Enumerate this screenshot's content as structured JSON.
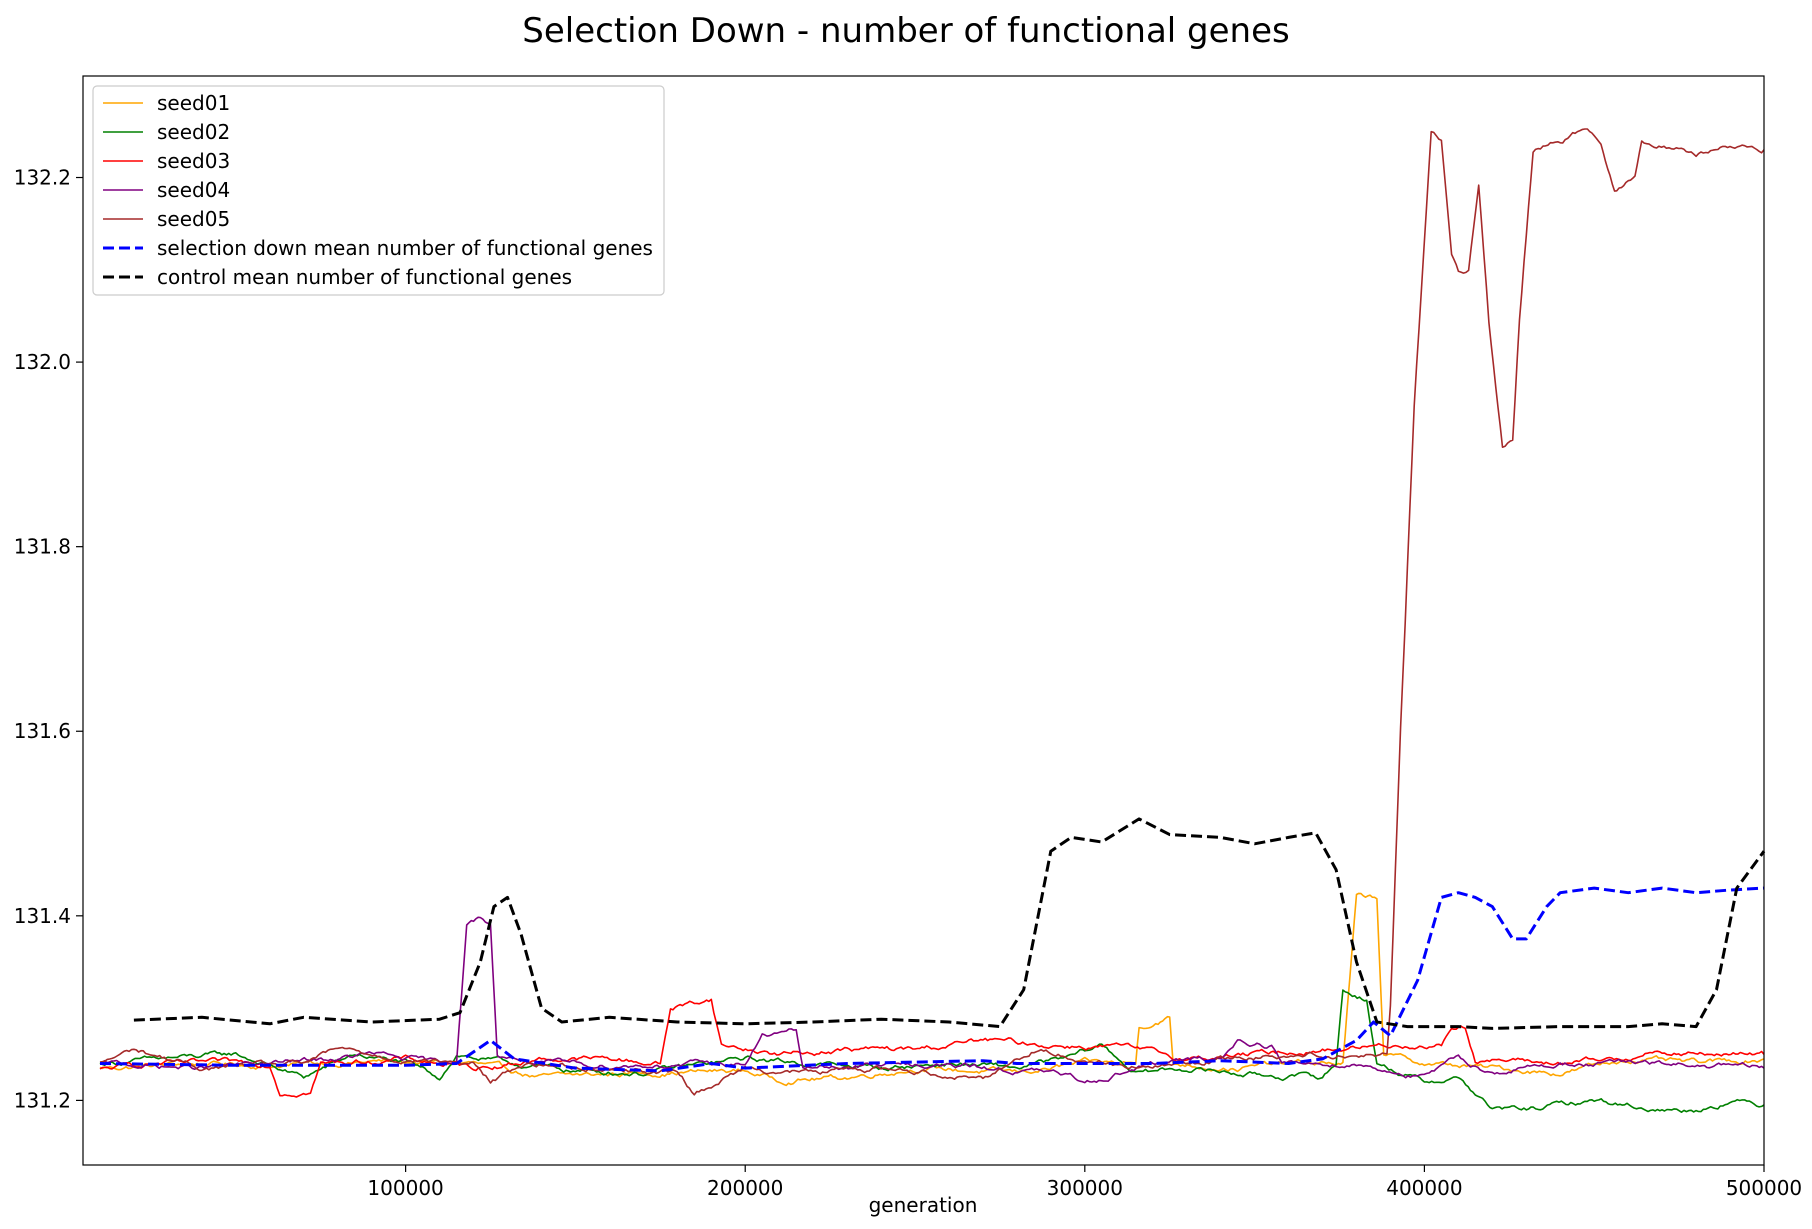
{
  "chart_data": {
    "type": "line",
    "title": "Selection Down - number of functional genes",
    "xlabel": "generation",
    "ylabel": "",
    "xlim": [
      5000,
      500000
    ],
    "ylim": [
      131.13,
      132.31
    ],
    "xticks": [
      100000,
      200000,
      300000,
      400000,
      500000
    ],
    "xtick_labels": [
      "100000",
      "200000",
      "300000",
      "400000",
      "500000"
    ],
    "yticks": [
      131.2,
      131.4,
      131.6,
      131.8,
      132.0,
      132.2
    ],
    "ytick_labels": [
      "131.2",
      "131.4",
      "131.6",
      "131.8",
      "132.0",
      "132.2"
    ],
    "grid": false,
    "legend_position": "top-left",
    "series": [
      {
        "name": "seed01",
        "color": "#ffa500",
        "style": "solid",
        "points": [
          [
            10000,
            131.235
          ],
          [
            40000,
            131.24
          ],
          [
            60000,
            131.238
          ],
          [
            90000,
            131.242
          ],
          [
            120000,
            131.24
          ],
          [
            140000,
            131.225
          ],
          [
            170000,
            131.23
          ],
          [
            200000,
            131.232
          ],
          [
            210000,
            131.222
          ],
          [
            230000,
            131.225
          ],
          [
            250000,
            131.235
          ],
          [
            280000,
            131.23
          ],
          [
            300000,
            131.24
          ],
          [
            315000,
            131.24
          ],
          [
            316000,
            131.28
          ],
          [
            325000,
            131.29
          ],
          [
            326000,
            131.24
          ],
          [
            345000,
            131.235
          ],
          [
            360000,
            131.24
          ],
          [
            376000,
            131.24
          ],
          [
            380000,
            131.42
          ],
          [
            386000,
            131.42
          ],
          [
            388000,
            131.25
          ],
          [
            400000,
            131.24
          ],
          [
            420000,
            131.235
          ],
          [
            440000,
            131.23
          ],
          [
            460000,
            131.245
          ],
          [
            480000,
            131.24
          ],
          [
            500000,
            131.245
          ]
        ]
      },
      {
        "name": "seed02",
        "color": "#008000",
        "style": "solid",
        "points": [
          [
            10000,
            131.24
          ],
          [
            30000,
            131.245
          ],
          [
            50000,
            131.25
          ],
          [
            70000,
            131.225
          ],
          [
            85000,
            131.25
          ],
          [
            100000,
            131.24
          ],
          [
            110000,
            131.225
          ],
          [
            115000,
            131.25
          ],
          [
            130000,
            131.24
          ],
          [
            150000,
            131.232
          ],
          [
            170000,
            131.23
          ],
          [
            190000,
            131.24
          ],
          [
            200000,
            131.245
          ],
          [
            220000,
            131.24
          ],
          [
            240000,
            131.235
          ],
          [
            260000,
            131.24
          ],
          [
            280000,
            131.235
          ],
          [
            295000,
            131.245
          ],
          [
            305000,
            131.26
          ],
          [
            315000,
            131.23
          ],
          [
            330000,
            131.235
          ],
          [
            350000,
            131.228
          ],
          [
            370000,
            131.225
          ],
          [
            374000,
            131.24
          ],
          [
            376000,
            131.32
          ],
          [
            383000,
            131.31
          ],
          [
            386000,
            131.24
          ],
          [
            400000,
            131.22
          ],
          [
            410000,
            131.225
          ],
          [
            420000,
            131.19
          ],
          [
            430000,
            131.19
          ],
          [
            450000,
            131.2
          ],
          [
            470000,
            131.19
          ],
          [
            480000,
            131.19
          ],
          [
            490000,
            131.2
          ],
          [
            500000,
            131.195
          ]
        ]
      },
      {
        "name": "seed03",
        "color": "#ff0000",
        "style": "solid",
        "points": [
          [
            10000,
            131.233
          ],
          [
            25000,
            131.24
          ],
          [
            60000,
            131.24
          ],
          [
            63000,
            131.21
          ],
          [
            72000,
            131.21
          ],
          [
            75000,
            131.24
          ],
          [
            100000,
            131.245
          ],
          [
            120000,
            131.235
          ],
          [
            140000,
            131.245
          ],
          [
            160000,
            131.245
          ],
          [
            175000,
            131.24
          ],
          [
            178000,
            131.3
          ],
          [
            190000,
            131.31
          ],
          [
            193000,
            131.26
          ],
          [
            210000,
            131.25
          ],
          [
            230000,
            131.255
          ],
          [
            250000,
            131.255
          ],
          [
            270000,
            131.265
          ],
          [
            290000,
            131.26
          ],
          [
            310000,
            131.258
          ],
          [
            330000,
            131.245
          ],
          [
            350000,
            131.25
          ],
          [
            370000,
            131.255
          ],
          [
            390000,
            131.26
          ],
          [
            405000,
            131.26
          ],
          [
            408000,
            131.28
          ],
          [
            412000,
            131.28
          ],
          [
            415000,
            131.245
          ],
          [
            440000,
            131.24
          ],
          [
            460000,
            131.245
          ],
          [
            465000,
            131.255
          ],
          [
            470000,
            131.25
          ],
          [
            500000,
            131.25
          ]
        ]
      },
      {
        "name": "seed04",
        "color": "#800080",
        "style": "solid",
        "points": [
          [
            10000,
            131.24
          ],
          [
            40000,
            131.235
          ],
          [
            80000,
            131.245
          ],
          [
            90000,
            131.25
          ],
          [
            110000,
            131.24
          ],
          [
            115000,
            131.245
          ],
          [
            118000,
            131.39
          ],
          [
            122000,
            131.398
          ],
          [
            125000,
            131.39
          ],
          [
            127000,
            131.25
          ],
          [
            140000,
            131.24
          ],
          [
            160000,
            131.238
          ],
          [
            200000,
            131.24
          ],
          [
            205000,
            131.27
          ],
          [
            215000,
            131.275
          ],
          [
            217000,
            131.235
          ],
          [
            250000,
            131.24
          ],
          [
            290000,
            131.23
          ],
          [
            300000,
            131.22
          ],
          [
            320000,
            131.24
          ],
          [
            340000,
            131.245
          ],
          [
            345000,
            131.265
          ],
          [
            355000,
            131.26
          ],
          [
            358000,
            131.24
          ],
          [
            380000,
            131.24
          ],
          [
            400000,
            131.225
          ],
          [
            410000,
            131.245
          ],
          [
            420000,
            131.23
          ],
          [
            440000,
            131.24
          ],
          [
            460000,
            131.24
          ],
          [
            500000,
            131.235
          ]
        ]
      },
      {
        "name": "seed05",
        "color": "#a52a2a",
        "style": "solid",
        "points": [
          [
            10000,
            131.24
          ],
          [
            20000,
            131.255
          ],
          [
            40000,
            131.235
          ],
          [
            70000,
            131.24
          ],
          [
            80000,
            131.255
          ],
          [
            100000,
            131.245
          ],
          [
            120000,
            131.24
          ],
          [
            125000,
            131.22
          ],
          [
            135000,
            131.24
          ],
          [
            160000,
            131.235
          ],
          [
            180000,
            131.23
          ],
          [
            185000,
            131.208
          ],
          [
            200000,
            131.235
          ],
          [
            220000,
            131.23
          ],
          [
            240000,
            131.235
          ],
          [
            270000,
            131.225
          ],
          [
            285000,
            131.255
          ],
          [
            300000,
            131.245
          ],
          [
            320000,
            131.235
          ],
          [
            340000,
            131.245
          ],
          [
            360000,
            131.25
          ],
          [
            380000,
            131.25
          ],
          [
            389000,
            131.25
          ],
          [
            390000,
            131.3
          ],
          [
            393000,
            131.6
          ],
          [
            397000,
            131.95
          ],
          [
            402000,
            132.25
          ],
          [
            405000,
            132.24
          ],
          [
            408000,
            132.12
          ],
          [
            410000,
            132.1
          ],
          [
            413000,
            132.1
          ],
          [
            416000,
            132.19
          ],
          [
            419000,
            132.04
          ],
          [
            423000,
            131.91
          ],
          [
            426000,
            131.92
          ],
          [
            428000,
            132.05
          ],
          [
            432000,
            132.23
          ],
          [
            440000,
            132.24
          ],
          [
            448000,
            132.255
          ],
          [
            452000,
            132.24
          ],
          [
            456000,
            132.19
          ],
          [
            462000,
            132.2
          ],
          [
            464000,
            132.24
          ],
          [
            472000,
            132.235
          ],
          [
            480000,
            132.225
          ],
          [
            490000,
            132.235
          ],
          [
            500000,
            132.23
          ]
        ]
      },
      {
        "name": "selection down mean number of functional genes",
        "color": "#0000ff",
        "style": "dashed",
        "points": [
          [
            10000,
            131.24
          ],
          [
            50000,
            131.238
          ],
          [
            100000,
            131.238
          ],
          [
            115000,
            131.24
          ],
          [
            125000,
            131.265
          ],
          [
            132000,
            131.245
          ],
          [
            150000,
            131.235
          ],
          [
            175000,
            131.232
          ],
          [
            190000,
            131.24
          ],
          [
            200000,
            131.235
          ],
          [
            230000,
            131.24
          ],
          [
            270000,
            131.243
          ],
          [
            280000,
            131.24
          ],
          [
            300000,
            131.24
          ],
          [
            310000,
            131.24
          ],
          [
            320000,
            131.24
          ],
          [
            340000,
            131.243
          ],
          [
            360000,
            131.24
          ],
          [
            370000,
            131.245
          ],
          [
            380000,
            131.265
          ],
          [
            385000,
            131.285
          ],
          [
            390000,
            131.27
          ],
          [
            398000,
            131.33
          ],
          [
            405000,
            131.42
          ],
          [
            410000,
            131.425
          ],
          [
            415000,
            131.42
          ],
          [
            420000,
            131.41
          ],
          [
            426000,
            131.375
          ],
          [
            430000,
            131.375
          ],
          [
            436000,
            131.41
          ],
          [
            440000,
            131.425
          ],
          [
            450000,
            131.43
          ],
          [
            460000,
            131.425
          ],
          [
            470000,
            131.43
          ],
          [
            480000,
            131.425
          ],
          [
            490000,
            131.428
          ],
          [
            500000,
            131.43
          ]
        ]
      },
      {
        "name": "control mean number of functional genes",
        "color": "#000000",
        "style": "dashed",
        "points": [
          [
            20000,
            131.287
          ],
          [
            40000,
            131.29
          ],
          [
            60000,
            131.283
          ],
          [
            70000,
            131.29
          ],
          [
            90000,
            131.285
          ],
          [
            110000,
            131.288
          ],
          [
            116000,
            131.295
          ],
          [
            122000,
            131.35
          ],
          [
            126000,
            131.41
          ],
          [
            130000,
            131.42
          ],
          [
            134000,
            131.38
          ],
          [
            140000,
            131.3
          ],
          [
            146000,
            131.285
          ],
          [
            160000,
            131.29
          ],
          [
            180000,
            131.285
          ],
          [
            200000,
            131.283
          ],
          [
            220000,
            131.285
          ],
          [
            240000,
            131.288
          ],
          [
            260000,
            131.285
          ],
          [
            275000,
            131.28
          ],
          [
            282000,
            131.32
          ],
          [
            290000,
            131.47
          ],
          [
            296000,
            131.485
          ],
          [
            305000,
            131.48
          ],
          [
            316000,
            131.505
          ],
          [
            325000,
            131.488
          ],
          [
            340000,
            131.485
          ],
          [
            350000,
            131.478
          ],
          [
            360000,
            131.485
          ],
          [
            368000,
            131.49
          ],
          [
            374000,
            131.45
          ],
          [
            380000,
            131.35
          ],
          [
            386000,
            131.285
          ],
          [
            395000,
            131.28
          ],
          [
            410000,
            131.28
          ],
          [
            420000,
            131.278
          ],
          [
            440000,
            131.28
          ],
          [
            460000,
            131.28
          ],
          [
            470000,
            131.283
          ],
          [
            480000,
            131.28
          ],
          [
            486000,
            131.32
          ],
          [
            492000,
            131.43
          ],
          [
            500000,
            131.47
          ]
        ]
      }
    ]
  }
}
